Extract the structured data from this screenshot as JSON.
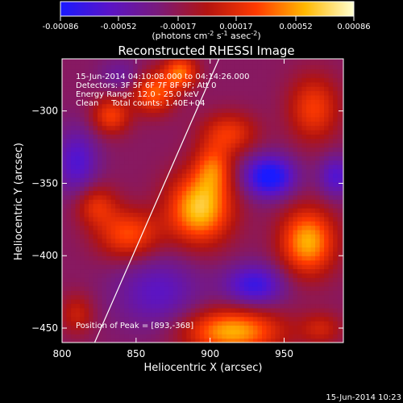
{
  "chart_data": {
    "type": "heatmap",
    "title": "Reconstructed RHESSI Image",
    "xlabel": "Heliocentric X (arcsec)",
    "ylabel": "Heliocentric Y (arcsec)",
    "xlim": [
      800,
      990
    ],
    "ylim": [
      -460,
      -264
    ],
    "xticks": [
      800,
      850,
      900,
      950
    ],
    "yticks": [
      -300,
      -350,
      -400,
      -450
    ],
    "colorbar": {
      "ticks": [
        "-0.00086",
        "-0.00052",
        "-0.00017",
        "0.00017",
        "0.00052",
        "0.00086"
      ],
      "range": [
        -0.00086,
        0.00086
      ],
      "unit_label": "(photons cm-2 s-1 asec-2)",
      "colors": [
        "#1a1aff",
        "#5a14c8",
        "#7a1a7a",
        "#b31410",
        "#ff3a00",
        "#ffb800",
        "#ffffd0"
      ]
    },
    "annotations": [
      "15-Jun-2014 04:10:08.000 to 04:14:26.000",
      "Detectors: 3F 5F 6F 7F 8F 9F; Att 0",
      "Energy Range: 12.0 - 25.0 keV",
      "Clean     Total counts: 1.40E+04"
    ],
    "peak_label": "Position of Peak = [893,-368]",
    "peak": [
      893,
      -368
    ],
    "timestamp": "15-Jun-2014 10:23",
    "blobs": [
      {
        "x": 893,
        "y": -367,
        "amp": 0.00086,
        "sx": 15,
        "sy": 17
      },
      {
        "x": 902,
        "y": -339,
        "amp": 0.00048,
        "sx": 9,
        "sy": 12
      },
      {
        "x": 913,
        "y": -315,
        "amp": 0.00044,
        "sx": 13,
        "sy": 10
      },
      {
        "x": 966,
        "y": -390,
        "amp": 0.00078,
        "sx": 13,
        "sy": 16
      },
      {
        "x": 845,
        "y": -385,
        "amp": 0.00054,
        "sx": 15,
        "sy": 12
      },
      {
        "x": 823,
        "y": -365,
        "amp": 0.0004,
        "sx": 10,
        "sy": 10
      },
      {
        "x": 915,
        "y": -452,
        "amp": 0.00078,
        "sx": 23,
        "sy": 11
      },
      {
        "x": 862,
        "y": -287,
        "amp": 0.00058,
        "sx": 10,
        "sy": 10
      },
      {
        "x": 880,
        "y": -273,
        "amp": 0.0006,
        "sx": 8,
        "sy": 8
      },
      {
        "x": 833,
        "y": -303,
        "amp": 0.00048,
        "sx": 9,
        "sy": 9
      },
      {
        "x": 970,
        "y": -298,
        "amp": 0.00048,
        "sx": 12,
        "sy": 16
      },
      {
        "x": 810,
        "y": -440,
        "amp": 0.0003,
        "sx": 8,
        "sy": 10
      },
      {
        "x": 975,
        "y": -450,
        "amp": 0.0003,
        "sx": 10,
        "sy": 8
      },
      {
        "x": 865,
        "y": -425,
        "amp": -0.00034,
        "sx": 20,
        "sy": 18
      },
      {
        "x": 940,
        "y": -345,
        "amp": -0.0007,
        "sx": 12,
        "sy": 10
      },
      {
        "x": 930,
        "y": -420,
        "amp": -0.0005,
        "sx": 14,
        "sy": 10
      },
      {
        "x": 810,
        "y": -335,
        "amp": -0.0004,
        "sx": 10,
        "sy": 16
      },
      {
        "x": 985,
        "y": -345,
        "amp": -0.0004,
        "sx": 8,
        "sy": 10
      },
      {
        "x": 840,
        "y": -275,
        "amp": -0.0002,
        "sx": 10,
        "sy": 8
      }
    ],
    "background": -0.00022,
    "limb_line": {
      "x": [
        822,
        906
      ],
      "y": [
        -460,
        -264
      ]
    }
  }
}
